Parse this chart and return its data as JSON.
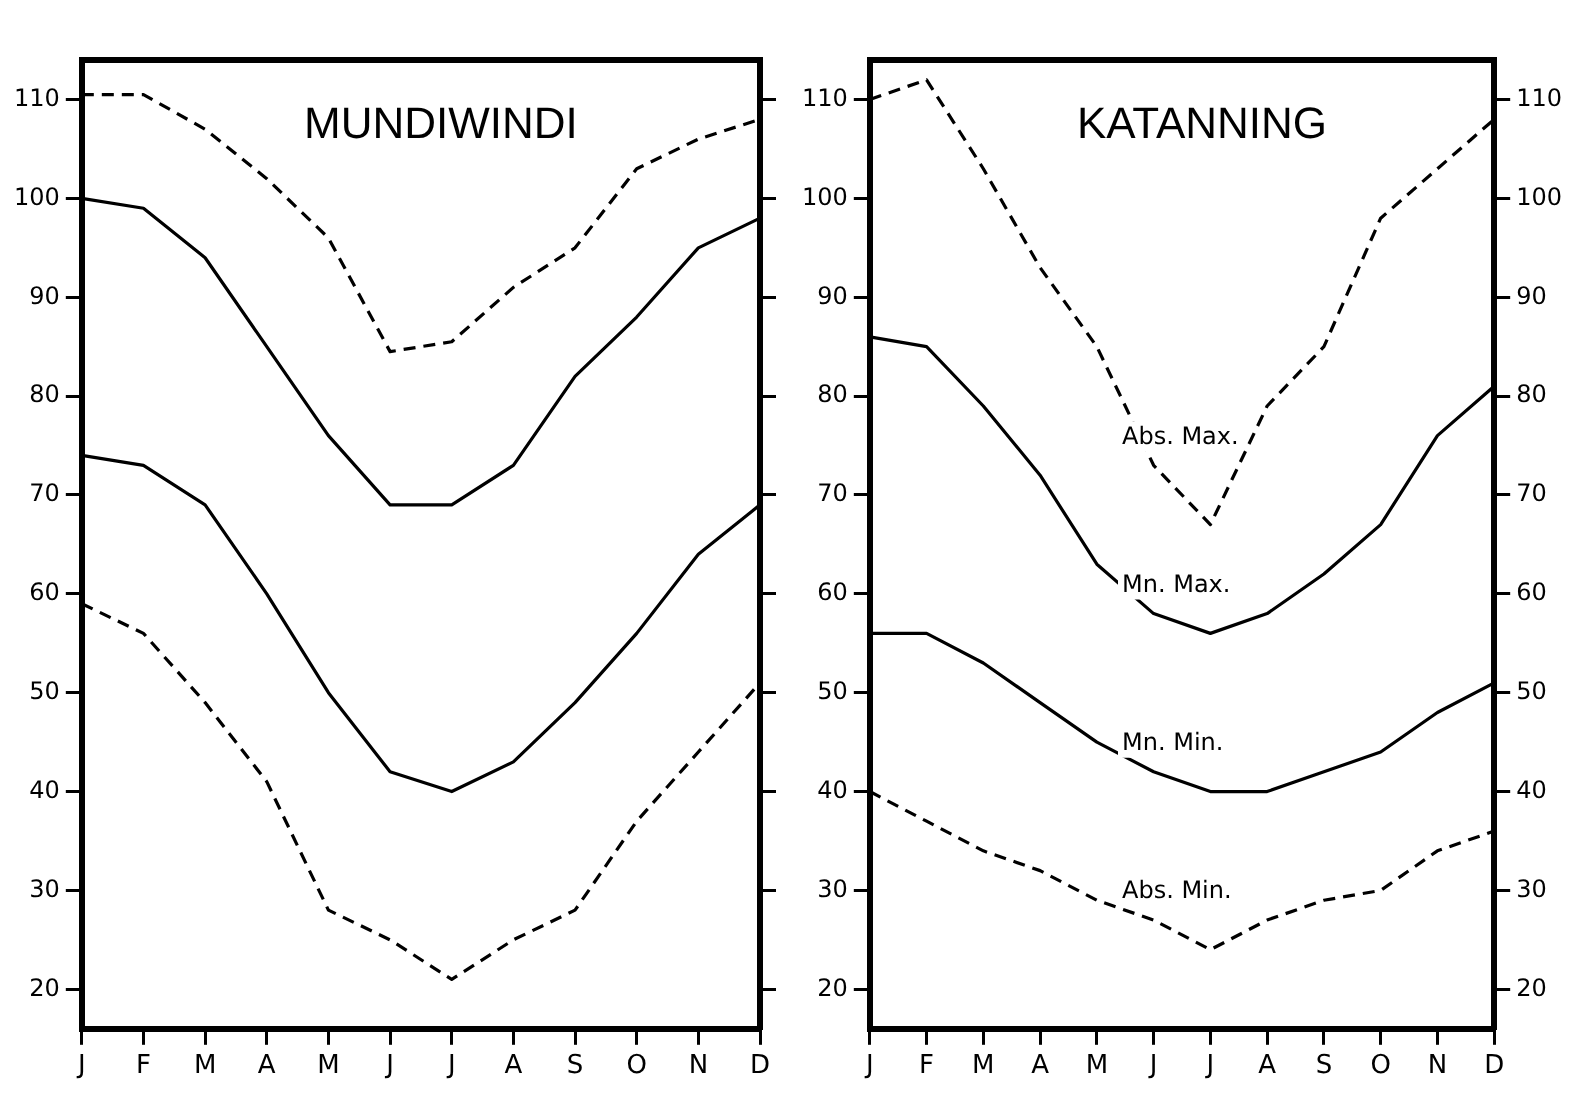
{
  "chart_data": [
    {
      "type": "line",
      "title": "MUNDIWINDI",
      "categories": [
        "J",
        "F",
        "M",
        "A",
        "M",
        "J",
        "J",
        "A",
        "S",
        "O",
        "N",
        "D"
      ],
      "series": [
        {
          "color": "#000000",
          "line_style": "dashed",
          "values": [
            110.5,
            110.5,
            107,
            102,
            96,
            84.5,
            85.5,
            91,
            95,
            103,
            106,
            108
          ]
        },
        {
          "color": "#000000",
          "line_style": "solid",
          "values": [
            100,
            99,
            94,
            85,
            76,
            69,
            69,
            73,
            82,
            88,
            95,
            98
          ]
        },
        {
          "color": "#000000",
          "line_style": "solid",
          "values": [
            74,
            73,
            69,
            60,
            50,
            42,
            40,
            43,
            49,
            56,
            64,
            69
          ]
        },
        {
          "color": "#000000",
          "line_style": "dashed",
          "values": [
            59,
            56,
            49,
            41,
            28,
            25,
            21,
            25,
            28,
            37,
            44,
            51
          ]
        }
      ],
      "ylim": [
        16,
        114
      ],
      "yticks": [
        20,
        30,
        40,
        50,
        60,
        70,
        80,
        90,
        100,
        110
      ],
      "grid": false,
      "legend": false,
      "marker": "none"
    },
    {
      "type": "line",
      "title": "KATANNING",
      "categories": [
        "J",
        "F",
        "M",
        "A",
        "M",
        "J",
        "J",
        "A",
        "S",
        "O",
        "N",
        "D"
      ],
      "series": [
        {
          "name": "Abs. Max.",
          "color": "#000000",
          "line_style": "dashed",
          "values": [
            110,
            112,
            103,
            93,
            85,
            73,
            67,
            79,
            85,
            98,
            103,
            108
          ]
        },
        {
          "name": "Mn. Max.",
          "color": "#000000",
          "line_style": "solid",
          "values": [
            86,
            85,
            79,
            72,
            63,
            58,
            56,
            58,
            62,
            67,
            76,
            81
          ]
        },
        {
          "name": "Mn. Min.",
          "color": "#000000",
          "line_style": "solid",
          "values": [
            56,
            56,
            53,
            49,
            45,
            42,
            40,
            40,
            42,
            44,
            48,
            51
          ]
        },
        {
          "name": "Abs. Min.",
          "color": "#000000",
          "line_style": "dashed",
          "values": [
            40,
            37,
            34,
            32,
            29,
            27,
            24,
            27,
            29,
            30,
            34,
            36
          ]
        }
      ],
      "ylim": [
        16,
        114
      ],
      "yticks": [
        20,
        30,
        40,
        50,
        60,
        70,
        80,
        90,
        100,
        110
      ],
      "y2lim": [
        16,
        114
      ],
      "y2ticks": [
        20,
        30,
        40,
        50,
        60,
        70,
        80,
        90,
        100,
        110
      ],
      "grid": false,
      "legend": false,
      "marker": "none"
    }
  ]
}
